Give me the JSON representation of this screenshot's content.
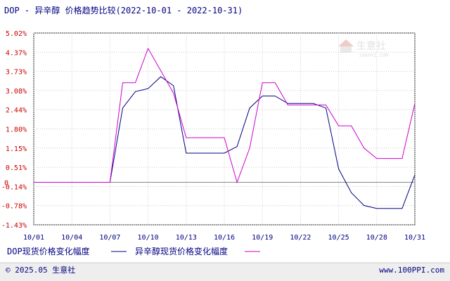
{
  "chart_data": {
    "type": "line",
    "title": "DOP - 异辛醇 价格趋势比较(2022-10-01 - 2022-10-31)",
    "xlabel": "",
    "ylabel": "",
    "x_tick_labels": [
      "10/01",
      "10/04",
      "10/07",
      "10/10",
      "10/13",
      "10/16",
      "10/19",
      "10/22",
      "10/25",
      "10/28",
      "10/31"
    ],
    "y_tick_labels": [
      "5.02%",
      "4.37%",
      "3.73%",
      "3.08%",
      "2.44%",
      "1.80%",
      "1.15%",
      "0.51%",
      "-0.14%",
      "-0.78%",
      "-1.43%"
    ],
    "y_zero_label": "0",
    "ylim": [
      -1.43,
      5.02
    ],
    "grid": true,
    "legend_position": "bottom",
    "series": [
      {
        "name": "DOP现货价格变化幅度",
        "color": "#000080",
        "x": [
          1,
          2,
          3,
          4,
          5,
          6,
          7,
          8,
          9,
          10,
          11,
          12,
          13,
          14,
          15,
          16,
          17,
          18,
          19,
          20,
          21,
          22,
          23,
          24,
          25,
          26,
          27,
          28,
          29,
          30,
          31
        ],
        "values": [
          0,
          0,
          0,
          0,
          0,
          0,
          0,
          2.5,
          3.05,
          3.15,
          3.55,
          3.25,
          0.98,
          0.98,
          0.98,
          0.98,
          1.2,
          2.5,
          2.9,
          2.9,
          2.65,
          2.65,
          2.65,
          2.5,
          0.45,
          -0.35,
          -0.78,
          -0.88,
          -0.88,
          -0.88,
          0.25
        ]
      },
      {
        "name": "异辛醇现货价格变化幅度",
        "color": "#cc00cc",
        "x": [
          1,
          2,
          3,
          4,
          5,
          6,
          7,
          8,
          9,
          10,
          11,
          12,
          13,
          14,
          15,
          16,
          17,
          18,
          19,
          20,
          21,
          22,
          23,
          24,
          25,
          26,
          27,
          28,
          29,
          30,
          31
        ],
        "values": [
          0,
          0,
          0,
          0,
          0,
          0,
          0,
          3.35,
          3.35,
          4.5,
          3.75,
          3.0,
          1.5,
          1.5,
          1.5,
          1.5,
          0,
          1.15,
          3.35,
          3.35,
          2.6,
          2.6,
          2.6,
          2.6,
          1.9,
          1.9,
          1.15,
          0.8,
          0.8,
          0.8,
          2.65
        ]
      }
    ]
  },
  "footer": {
    "copyright": "© 2025.05 生意社",
    "website": "www.100PPI.com"
  },
  "watermark": {
    "text": "生意社",
    "url": "100PPI.COM"
  }
}
